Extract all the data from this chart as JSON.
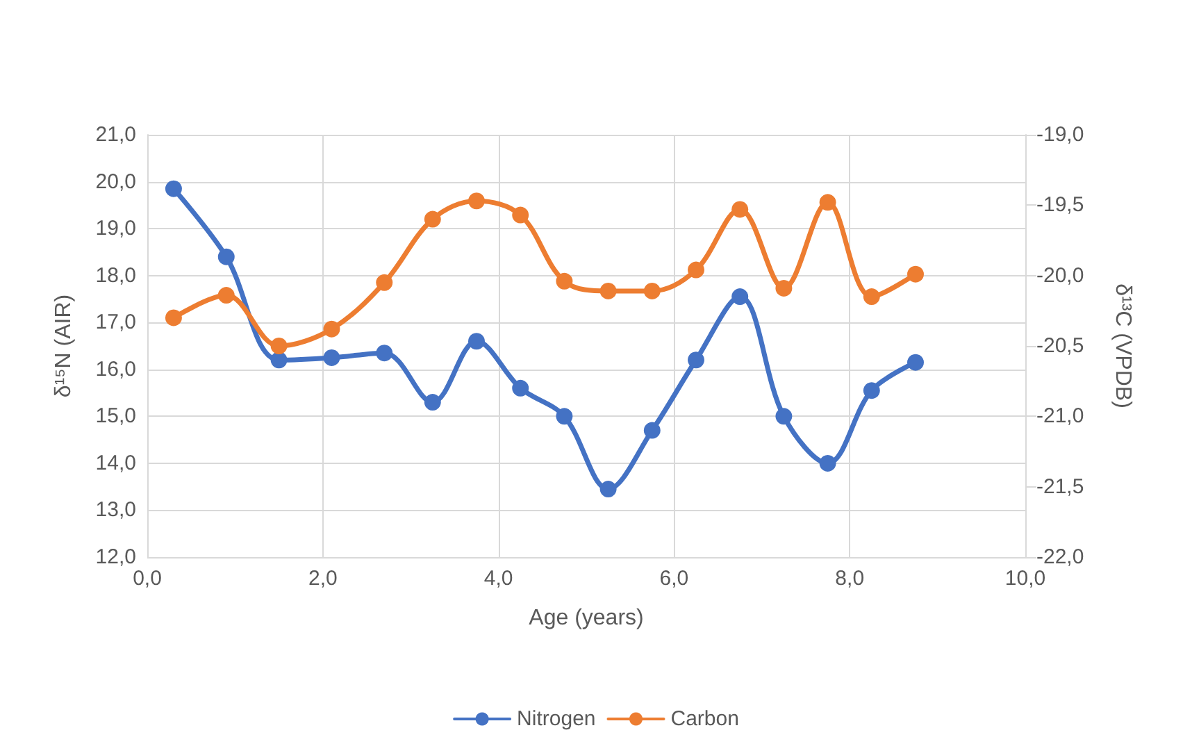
{
  "chart_data": {
    "type": "line",
    "xlabel": "Age (years)",
    "ylabel": "δ¹⁵N (AIR)",
    "y2label": "δ¹³C (VPDB)",
    "xlim": [
      0,
      10
    ],
    "xticks": [
      {
        "value": 0,
        "label": "0,0"
      },
      {
        "value": 2,
        "label": "2,0"
      },
      {
        "value": 4,
        "label": "4,0"
      },
      {
        "value": 6,
        "label": "6,0"
      },
      {
        "value": 8,
        "label": "8,0"
      },
      {
        "value": 10,
        "label": "10,0"
      }
    ],
    "ylim": [
      12,
      21
    ],
    "yticks": [
      {
        "value": 12,
        "label": "12,0"
      },
      {
        "value": 13,
        "label": "13,0"
      },
      {
        "value": 14,
        "label": "14,0"
      },
      {
        "value": 15,
        "label": "15,0"
      },
      {
        "value": 16,
        "label": "16,0"
      },
      {
        "value": 17,
        "label": "17,0"
      },
      {
        "value": 18,
        "label": "18,0"
      },
      {
        "value": 19,
        "label": "19,0"
      },
      {
        "value": 20,
        "label": "20,0"
      },
      {
        "value": 21,
        "label": "21,0"
      }
    ],
    "y2lim": [
      -22,
      -19
    ],
    "y2ticks": [
      {
        "value": -22,
        "label": "-22,0"
      },
      {
        "value": -21.5,
        "label": "-21,5"
      },
      {
        "value": -21,
        "label": "-21,0"
      },
      {
        "value": -20.5,
        "label": "-20,5"
      },
      {
        "value": -20,
        "label": "-20,0"
      },
      {
        "value": -19.5,
        "label": "-19,5"
      },
      {
        "value": -19,
        "label": "-19,0"
      }
    ],
    "x": [
      0.3,
      0.9,
      1.5,
      2.1,
      2.7,
      3.25,
      3.75,
      4.25,
      4.75,
      5.25,
      5.75,
      6.25,
      6.75,
      7.25,
      7.75,
      8.25,
      8.75
    ],
    "series": [
      {
        "name": "Nitrogen",
        "color": "#4472c4",
        "values": [
          19.85,
          18.4,
          16.2,
          16.25,
          16.35,
          15.3,
          16.6,
          15.6,
          15.0,
          13.45,
          14.7,
          16.2,
          17.55,
          15.0,
          14.0,
          15.55,
          16.15
        ]
      },
      {
        "name": "Carbon",
        "color": "#ed7d31",
        "axis": "y2",
        "values": [
          -20.3,
          -20.14,
          -20.5,
          -20.38,
          -20.05,
          -19.6,
          -19.47,
          -19.57,
          -20.04,
          -20.11,
          -20.11,
          -19.96,
          -19.53,
          -20.09,
          -19.48,
          -20.15,
          -19.99
        ]
      }
    ],
    "grid": true,
    "legend": "bottom",
    "marker": "circle",
    "line_style": "solid"
  }
}
